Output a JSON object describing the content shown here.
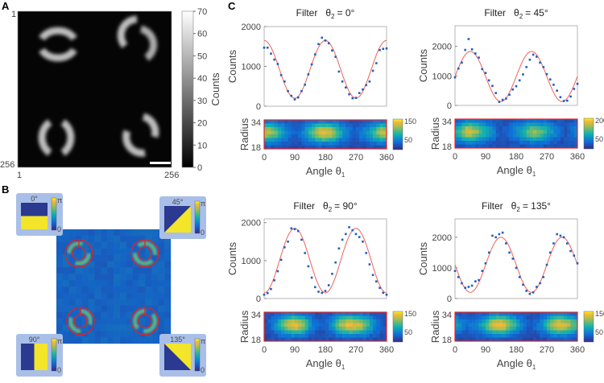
{
  "panel_labels": {
    "a": "A",
    "b": "B",
    "c": "C"
  },
  "panel_a": {
    "x_ticks": [
      "1",
      "256"
    ],
    "y_ticks": [
      "1",
      "256"
    ],
    "colorbar_ticks": [
      "0",
      "10",
      "20",
      "30",
      "40",
      "50",
      "60",
      "70"
    ],
    "colorbar_label": "Counts",
    "colormap": "gray"
  },
  "panel_b": {
    "insets": [
      {
        "angle": "0°",
        "cb_max": "π",
        "cb_min": "0",
        "pattern": "horizontal"
      },
      {
        "angle": "45°",
        "cb_max": "π",
        "cb_min": "0",
        "pattern": "diag45"
      },
      {
        "angle": "90°",
        "cb_max": "π",
        "cb_min": "0",
        "pattern": "vertical"
      },
      {
        "angle": "135°",
        "cb_max": "π",
        "cb_min": "0",
        "pattern": "diag135"
      }
    ],
    "ring_color": "#e8221e",
    "phase_colors": {
      "low": "#2b3990",
      "high": "#f2e52a"
    }
  },
  "chart_data": [
    {
      "type": "scatter",
      "title_prefix": "Filter",
      "title_theta": "θ",
      "title_sub": "2",
      "title_value": "= 0°",
      "xlabel": "Angle θ",
      "xlabel_sub": "1",
      "ylabel": "Counts",
      "heat_ylabel": "Radius",
      "x": [
        0,
        10,
        20,
        30,
        40,
        50,
        60,
        70,
        80,
        90,
        100,
        110,
        120,
        130,
        140,
        150,
        160,
        170,
        180,
        190,
        200,
        210,
        220,
        230,
        240,
        250,
        260,
        270,
        280,
        290,
        300,
        310,
        320,
        330,
        340,
        350,
        360
      ],
      "y": [
        1470,
        1470,
        1320,
        1170,
        1060,
        780,
        620,
        380,
        260,
        170,
        220,
        380,
        540,
        800,
        1050,
        1300,
        1560,
        1720,
        1650,
        1580,
        1400,
        1240,
        870,
        620,
        470,
        300,
        200,
        210,
        330,
        420,
        530,
        620,
        890,
        1080,
        1410,
        1440,
        1450
      ],
      "fit": {
        "offset": 925,
        "amplitude": 725,
        "phase_deg": 0
      },
      "xlim": [
        0,
        360
      ],
      "ylim": [
        0,
        2000
      ],
      "x_ticks": [
        "0",
        "90",
        "180",
        "270",
        "360"
      ],
      "y_ticks": [
        "0",
        "1000",
        "2000"
      ],
      "heat_y_ticks": [
        "34",
        "18"
      ],
      "heat_cb_ticks": [
        "150",
        "50"
      ],
      "heat_max": 150
    },
    {
      "type": "scatter",
      "title_prefix": "Filter",
      "title_theta": "θ",
      "title_sub": "2",
      "title_value": "= 45°",
      "xlabel": "Angle θ",
      "xlabel_sub": "1",
      "ylabel": "Counts",
      "heat_ylabel": "Radius",
      "x": [
        0,
        10,
        20,
        30,
        40,
        50,
        60,
        70,
        80,
        90,
        100,
        110,
        120,
        130,
        140,
        150,
        160,
        170,
        180,
        190,
        200,
        210,
        220,
        230,
        240,
        250,
        260,
        270,
        280,
        290,
        300,
        310,
        320,
        330,
        340,
        350,
        360
      ],
      "y": [
        950,
        1250,
        1450,
        1880,
        2250,
        1900,
        1760,
        1620,
        1230,
        1100,
        850,
        660,
        420,
        120,
        190,
        230,
        360,
        540,
        650,
        850,
        1050,
        1300,
        1550,
        1720,
        1650,
        1450,
        1300,
        1060,
        880,
        700,
        500,
        280,
        150,
        160,
        300,
        560,
        730
      ],
      "fit": {
        "offset": 980,
        "amplitude": 850,
        "phase_deg": 45
      },
      "xlim": [
        0,
        360
      ],
      "ylim": [
        0,
        2700
      ],
      "x_ticks": [
        "0",
        "90",
        "180",
        "270",
        "360"
      ],
      "y_ticks": [
        "0",
        "1000",
        "2000"
      ],
      "heat_y_ticks": [
        "34",
        "18"
      ],
      "heat_cb_ticks": [
        "200",
        "50"
      ],
      "heat_max": 200
    },
    {
      "type": "scatter",
      "title_prefix": "Filter",
      "title_theta": "θ",
      "title_sub": "2",
      "title_value": "= 90°",
      "xlabel": "Angle θ",
      "xlabel_sub": "1",
      "ylabel": "Counts",
      "heat_ylabel": "Radius",
      "x": [
        0,
        10,
        20,
        30,
        40,
        50,
        60,
        70,
        80,
        90,
        100,
        110,
        120,
        130,
        140,
        150,
        160,
        170,
        180,
        190,
        200,
        210,
        220,
        230,
        240,
        250,
        260,
        270,
        280,
        290,
        300,
        310,
        320,
        330,
        340,
        350,
        360
      ],
      "y": [
        100,
        140,
        250,
        480,
        720,
        1020,
        1350,
        1500,
        1850,
        1830,
        1780,
        1550,
        1200,
        850,
        550,
        300,
        180,
        150,
        200,
        350,
        650,
        950,
        1320,
        1550,
        1700,
        1880,
        1800,
        1700,
        1620,
        1500,
        1200,
        900,
        620,
        450,
        280,
        150,
        100
      ],
      "fit": {
        "offset": 1000,
        "amplitude": 850,
        "phase_deg": 90
      },
      "xlim": [
        0,
        360
      ],
      "ylim": [
        0,
        2100
      ],
      "x_ticks": [
        "0",
        "90",
        "180",
        "270",
        "360"
      ],
      "y_ticks": [
        "0",
        "1000",
        "2000"
      ],
      "heat_y_ticks": [
        "34",
        "18"
      ],
      "heat_cb_ticks": [
        "150",
        "50"
      ],
      "heat_max": 150
    },
    {
      "type": "scatter",
      "title_prefix": "Filter",
      "title_theta": "θ",
      "title_sub": "2",
      "title_value": "= 135°",
      "xlabel": "Angle θ",
      "xlabel_sub": "1",
      "ylabel": "Counts",
      "heat_ylabel": "Radius",
      "x": [
        0,
        10,
        20,
        30,
        40,
        50,
        60,
        70,
        80,
        90,
        100,
        110,
        120,
        130,
        140,
        150,
        160,
        170,
        180,
        190,
        200,
        210,
        220,
        230,
        240,
        250,
        260,
        270,
        280,
        290,
        300,
        310,
        320,
        330,
        340,
        350,
        360
      ],
      "y": [
        900,
        700,
        500,
        350,
        380,
        420,
        560,
        600,
        900,
        1150,
        1500,
        2050,
        2000,
        2100,
        2150,
        1800,
        1500,
        1300,
        1000,
        700,
        450,
        250,
        150,
        200,
        380,
        500,
        700,
        1100,
        1500,
        1800,
        2100,
        2050,
        2000,
        1800,
        1550,
        1400,
        1150
      ],
      "fit": {
        "offset": 1100,
        "amplitude": 900,
        "phase_deg": 135
      },
      "xlim": [
        0,
        360
      ],
      "ylim": [
        0,
        2600
      ],
      "x_ticks": [
        "0",
        "90",
        "180",
        "270",
        "360"
      ],
      "y_ticks": [
        "0",
        "1000",
        "2000"
      ],
      "heat_y_ticks": [
        "34",
        "18"
      ],
      "heat_cb_ticks": [
        "150",
        "50"
      ],
      "heat_max": 150
    }
  ],
  "colors": {
    "scatter": "#1f5fbf",
    "fit": "#f0625a",
    "heat_frame": "#e8221e"
  }
}
